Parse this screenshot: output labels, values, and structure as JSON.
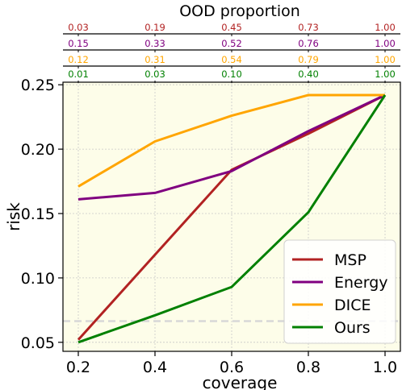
{
  "chart_data": {
    "type": "line",
    "title": "OOD proportion",
    "xlabel": "coverage",
    "ylabel": "risk",
    "x": [
      0.2,
      0.4,
      0.6,
      0.8,
      1.0
    ],
    "xticks": [
      "0.2",
      "0.4",
      "0.6",
      "0.8",
      "1.0"
    ],
    "yticks": [
      "0.05",
      "0.10",
      "0.15",
      "0.20",
      "0.25"
    ],
    "xlim": [
      0.16,
      1.04
    ],
    "ylim": [
      0.043,
      0.252
    ],
    "grid": true,
    "legend_position": "bottom-right",
    "background_color": "#fdfde9",
    "reference_line": {
      "y": 0.0665,
      "color": "#d8d8d8",
      "style": "dashed"
    },
    "series": [
      {
        "name": "MSP",
        "color": "#b22222",
        "values": [
          0.052,
          0.118,
          0.184,
          0.212,
          0.242
        ]
      },
      {
        "name": "Energy",
        "color": "#800080",
        "values": [
          0.161,
          0.166,
          0.183,
          0.214,
          0.242
        ]
      },
      {
        "name": "DICE",
        "color": "#ffa500",
        "values": [
          0.171,
          0.206,
          0.226,
          0.242,
          0.242
        ]
      },
      {
        "name": "Ours",
        "color": "#008000",
        "values": [
          0.05,
          0.071,
          0.093,
          0.151,
          0.242
        ]
      }
    ],
    "ood_rows": [
      {
        "color": "#b22222",
        "labels": [
          "0.03",
          "0.19",
          "0.45",
          "0.73",
          "1.00"
        ]
      },
      {
        "color": "#800080",
        "labels": [
          "0.15",
          "0.33",
          "0.52",
          "0.76",
          "1.00"
        ]
      },
      {
        "color": "#ffa500",
        "labels": [
          "0.12",
          "0.31",
          "0.54",
          "0.79",
          "1.00"
        ]
      },
      {
        "color": "#008000",
        "labels": [
          "0.01",
          "0.03",
          "0.10",
          "0.40",
          "1.00"
        ]
      }
    ]
  }
}
